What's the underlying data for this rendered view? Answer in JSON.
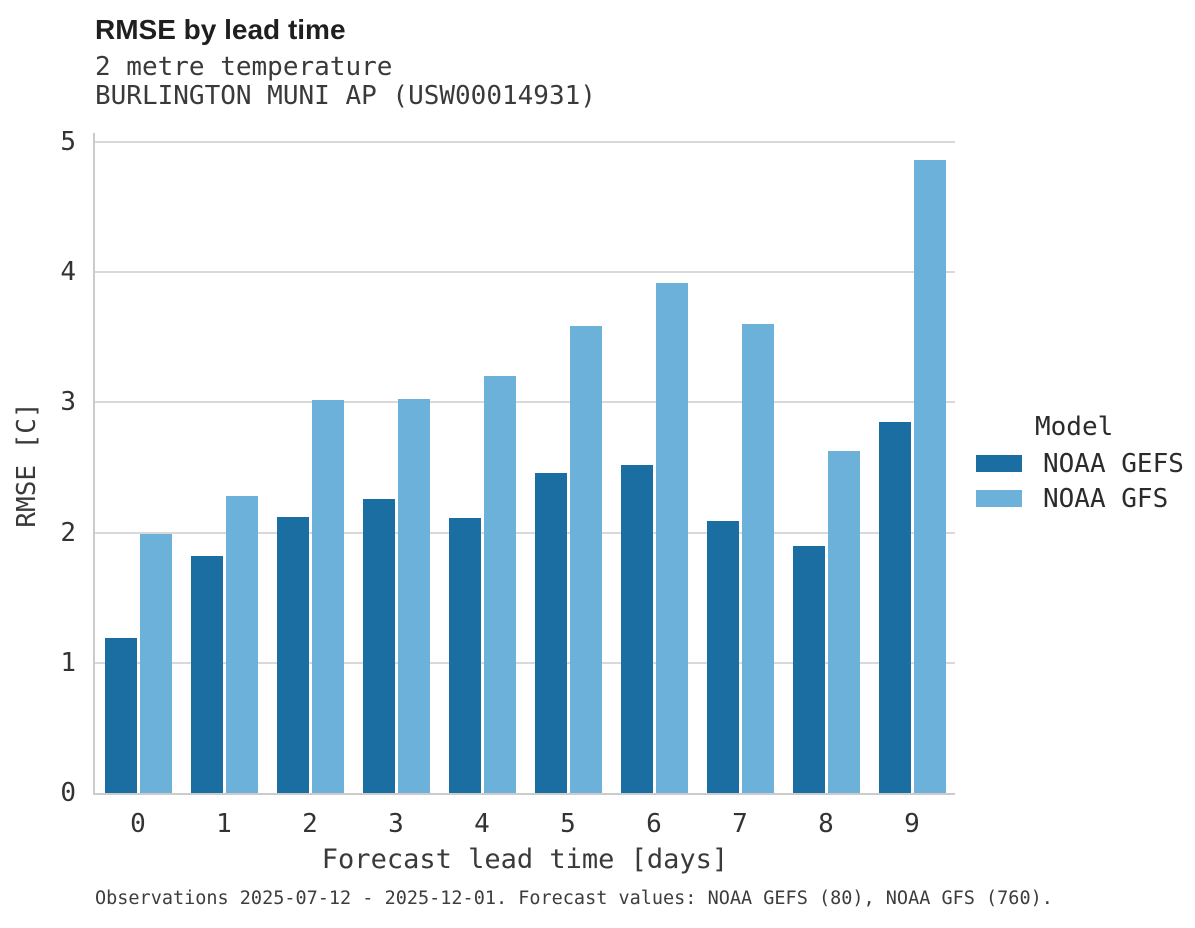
{
  "header": {
    "title": "RMSE by lead time",
    "subtitle_line1": "2 metre temperature",
    "subtitle_line2": "BURLINGTON MUNI AP (USW00014931)"
  },
  "legend": {
    "title": "Model"
  },
  "footer": {
    "text": "Observations 2025-07-12 - 2025-12-01. Forecast values: NOAA GEFS (80), NOAA GFS (760)."
  },
  "colors": {
    "gefs_dark_blue": "#1b6ea1",
    "gfs_light_blue": "#6cb1d9",
    "gridline_gray": "#d9d9d9",
    "spine_gray": "#cbcbcb"
  },
  "chart_data": {
    "type": "bar",
    "title": "RMSE by lead time",
    "subtitle": "2 metre temperature",
    "station": "BURLINGTON MUNI AP (USW00014931)",
    "xlabel": "Forecast lead time [days]",
    "ylabel": "RMSE [C]",
    "categories": [
      0,
      1,
      2,
      3,
      4,
      5,
      6,
      7,
      8,
      9
    ],
    "series": [
      {
        "name": "NOAA GEFS",
        "color": "#1b6ea1",
        "values": [
          1.19,
          1.82,
          2.12,
          2.26,
          2.11,
          2.46,
          2.52,
          2.09,
          1.9,
          2.85
        ]
      },
      {
        "name": "NOAA GFS",
        "color": "#6cb1d9",
        "values": [
          1.99,
          2.28,
          3.02,
          3.03,
          3.2,
          3.59,
          3.92,
          3.6,
          2.63,
          4.86
        ]
      }
    ],
    "ylim": [
      0,
      5.07
    ],
    "yticks": [
      0,
      1,
      2,
      3,
      4,
      5
    ],
    "grid": "horizontal",
    "legend_title": "Model",
    "legend_position": "right"
  }
}
